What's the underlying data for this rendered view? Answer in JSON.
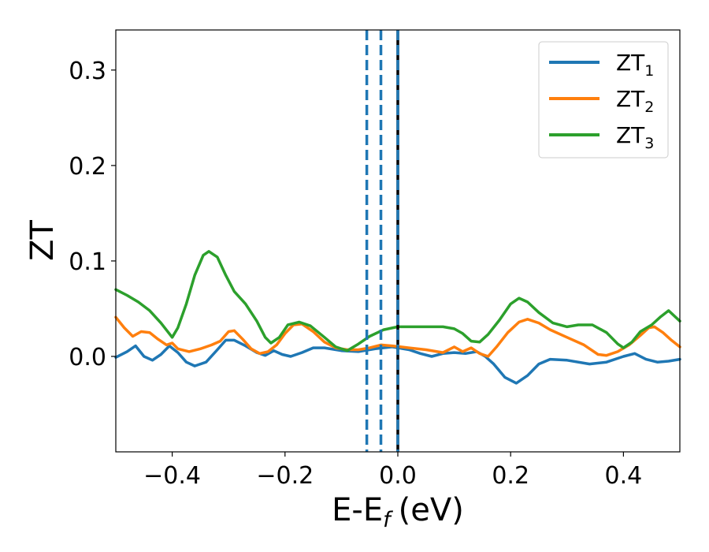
{
  "chart_data": {
    "type": "line",
    "xlabel": "E-E",
    "xlabel_sub": "f",
    "xlabel_unit": "(eV)",
    "ylabel": "ZT",
    "xlim": [
      -0.5,
      0.5
    ],
    "ylim": [
      -0.1,
      0.342
    ],
    "x_ticks": [
      -0.4,
      -0.2,
      0.0,
      0.2,
      0.4
    ],
    "x_tick_labels": [
      "−0.4",
      "−0.2",
      "0.0",
      "0.2",
      "0.4"
    ],
    "y_ticks": [
      0.0,
      0.1,
      0.2,
      0.3
    ],
    "y_tick_labels": [
      "0.0",
      "0.1",
      "0.2",
      "0.3"
    ],
    "grid": false,
    "legend_position": "top-right",
    "vertical_lines": [
      {
        "x": -0.055,
        "color": "#1f77b4",
        "style": "dashed"
      },
      {
        "x": -0.03,
        "color": "#1f77b4",
        "style": "dashed"
      },
      {
        "x": 0.0,
        "color": "#000000",
        "style": "solid"
      },
      {
        "x": 0.0,
        "color": "#1f77b4",
        "style": "dashed"
      }
    ],
    "series": [
      {
        "name": "ZT",
        "subscript": "1",
        "color": "#1f77b4",
        "points": [
          [
            -0.5,
            -0.001
          ],
          [
            -0.48,
            0.005
          ],
          [
            -0.465,
            0.011
          ],
          [
            -0.45,
            0.0
          ],
          [
            -0.435,
            -0.004
          ],
          [
            -0.42,
            0.002
          ],
          [
            -0.405,
            0.011
          ],
          [
            -0.39,
            0.004
          ],
          [
            -0.375,
            -0.006
          ],
          [
            -0.36,
            -0.01
          ],
          [
            -0.34,
            -0.006
          ],
          [
            -0.32,
            0.007
          ],
          [
            -0.305,
            0.017
          ],
          [
            -0.29,
            0.017
          ],
          [
            -0.27,
            0.011
          ],
          [
            -0.25,
            0.004
          ],
          [
            -0.235,
            0.001
          ],
          [
            -0.22,
            0.006
          ],
          [
            -0.205,
            0.002
          ],
          [
            -0.19,
            0.0
          ],
          [
            -0.17,
            0.004
          ],
          [
            -0.15,
            0.009
          ],
          [
            -0.13,
            0.009
          ],
          [
            -0.1,
            0.006
          ],
          [
            -0.07,
            0.005
          ],
          [
            -0.04,
            0.008
          ],
          [
            -0.01,
            0.01
          ],
          [
            0.02,
            0.007
          ],
          [
            0.04,
            0.003
          ],
          [
            0.06,
            0.0
          ],
          [
            0.08,
            0.003
          ],
          [
            0.1,
            0.004
          ],
          [
            0.12,
            0.003
          ],
          [
            0.14,
            0.005
          ],
          [
            0.155,
            0.0
          ],
          [
            0.17,
            -0.008
          ],
          [
            0.19,
            -0.022
          ],
          [
            0.21,
            -0.028
          ],
          [
            0.23,
            -0.02
          ],
          [
            0.25,
            -0.008
          ],
          [
            0.27,
            -0.003
          ],
          [
            0.3,
            -0.004
          ],
          [
            0.34,
            -0.008
          ],
          [
            0.37,
            -0.006
          ],
          [
            0.4,
            0.0
          ],
          [
            0.42,
            0.003
          ],
          [
            0.44,
            -0.003
          ],
          [
            0.46,
            -0.006
          ],
          [
            0.48,
            -0.005
          ],
          [
            0.5,
            -0.003
          ]
        ]
      },
      {
        "name": "ZT",
        "subscript": "2",
        "color": "#ff7f0e",
        "points": [
          [
            -0.5,
            0.041
          ],
          [
            -0.485,
            0.03
          ],
          [
            -0.47,
            0.021
          ],
          [
            -0.455,
            0.026
          ],
          [
            -0.44,
            0.025
          ],
          [
            -0.425,
            0.018
          ],
          [
            -0.41,
            0.012
          ],
          [
            -0.4,
            0.014
          ],
          [
            -0.39,
            0.008
          ],
          [
            -0.37,
            0.005
          ],
          [
            -0.35,
            0.008
          ],
          [
            -0.33,
            0.012
          ],
          [
            -0.315,
            0.016
          ],
          [
            -0.3,
            0.026
          ],
          [
            -0.29,
            0.027
          ],
          [
            -0.275,
            0.018
          ],
          [
            -0.26,
            0.008
          ],
          [
            -0.245,
            0.003
          ],
          [
            -0.23,
            0.005
          ],
          [
            -0.215,
            0.012
          ],
          [
            -0.2,
            0.024
          ],
          [
            -0.185,
            0.033
          ],
          [
            -0.17,
            0.034
          ],
          [
            -0.15,
            0.026
          ],
          [
            -0.13,
            0.015
          ],
          [
            -0.11,
            0.009
          ],
          [
            -0.09,
            0.007
          ],
          [
            -0.07,
            0.007
          ],
          [
            -0.05,
            0.009
          ],
          [
            -0.03,
            0.012
          ],
          [
            -0.01,
            0.011
          ],
          [
            0.02,
            0.009
          ],
          [
            0.05,
            0.007
          ],
          [
            0.08,
            0.004
          ],
          [
            0.1,
            0.01
          ],
          [
            0.115,
            0.005
          ],
          [
            0.13,
            0.009
          ],
          [
            0.145,
            0.003
          ],
          [
            0.16,
            0.0
          ],
          [
            0.175,
            0.01
          ],
          [
            0.195,
            0.025
          ],
          [
            0.215,
            0.036
          ],
          [
            0.23,
            0.039
          ],
          [
            0.25,
            0.035
          ],
          [
            0.27,
            0.028
          ],
          [
            0.3,
            0.02
          ],
          [
            0.33,
            0.012
          ],
          [
            0.355,
            0.002
          ],
          [
            0.37,
            0.001
          ],
          [
            0.39,
            0.005
          ],
          [
            0.41,
            0.012
          ],
          [
            0.43,
            0.022
          ],
          [
            0.445,
            0.03
          ],
          [
            0.455,
            0.031
          ],
          [
            0.47,
            0.025
          ],
          [
            0.485,
            0.017
          ],
          [
            0.5,
            0.01
          ]
        ]
      },
      {
        "name": "ZT",
        "subscript": "3",
        "color": "#2ca02c",
        "points": [
          [
            -0.5,
            0.07
          ],
          [
            -0.48,
            0.064
          ],
          [
            -0.46,
            0.057
          ],
          [
            -0.44,
            0.048
          ],
          [
            -0.42,
            0.035
          ],
          [
            -0.4,
            0.02
          ],
          [
            -0.39,
            0.03
          ],
          [
            -0.375,
            0.055
          ],
          [
            -0.36,
            0.085
          ],
          [
            -0.345,
            0.106
          ],
          [
            -0.335,
            0.11
          ],
          [
            -0.32,
            0.104
          ],
          [
            -0.305,
            0.085
          ],
          [
            -0.29,
            0.068
          ],
          [
            -0.27,
            0.055
          ],
          [
            -0.25,
            0.037
          ],
          [
            -0.235,
            0.02
          ],
          [
            -0.225,
            0.014
          ],
          [
            -0.21,
            0.02
          ],
          [
            -0.195,
            0.033
          ],
          [
            -0.175,
            0.036
          ],
          [
            -0.155,
            0.032
          ],
          [
            -0.13,
            0.02
          ],
          [
            -0.11,
            0.01
          ],
          [
            -0.09,
            0.006
          ],
          [
            -0.07,
            0.013
          ],
          [
            -0.05,
            0.021
          ],
          [
            -0.025,
            0.028
          ],
          [
            0.0,
            0.031
          ],
          [
            0.04,
            0.031
          ],
          [
            0.08,
            0.031
          ],
          [
            0.1,
            0.029
          ],
          [
            0.115,
            0.024
          ],
          [
            0.13,
            0.016
          ],
          [
            0.145,
            0.015
          ],
          [
            0.16,
            0.023
          ],
          [
            0.18,
            0.038
          ],
          [
            0.2,
            0.055
          ],
          [
            0.215,
            0.061
          ],
          [
            0.23,
            0.057
          ],
          [
            0.25,
            0.046
          ],
          [
            0.275,
            0.035
          ],
          [
            0.3,
            0.031
          ],
          [
            0.32,
            0.033
          ],
          [
            0.345,
            0.033
          ],
          [
            0.37,
            0.025
          ],
          [
            0.39,
            0.013
          ],
          [
            0.4,
            0.009
          ],
          [
            0.415,
            0.015
          ],
          [
            0.43,
            0.026
          ],
          [
            0.45,
            0.033
          ],
          [
            0.465,
            0.041
          ],
          [
            0.48,
            0.048
          ],
          [
            0.5,
            0.037
          ]
        ]
      }
    ]
  }
}
